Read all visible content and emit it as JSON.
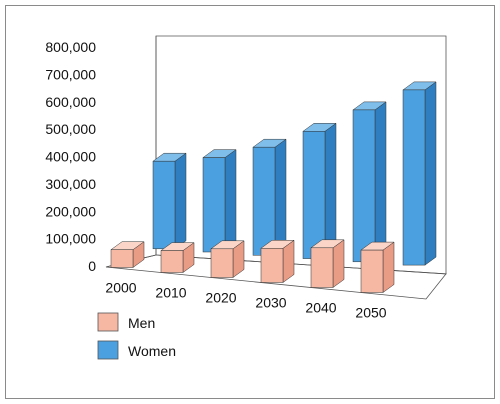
{
  "chart_data": {
    "type": "bar",
    "categories": [
      "2000",
      "2010",
      "2020",
      "2030",
      "2040",
      "2050"
    ],
    "series": [
      {
        "name": "Men",
        "values": [
          65000,
          80000,
          105000,
          125000,
          145000,
          155000
        ]
      },
      {
        "name": "Women",
        "values": [
          320000,
          345000,
          395000,
          465000,
          555000,
          640000
        ]
      }
    ],
    "y_ticks": [
      "0",
      "100,000",
      "200,000",
      "300,000",
      "400,000",
      "500,000",
      "600,000",
      "700,000",
      "800,000"
    ],
    "ylim": [
      0,
      800000
    ],
    "grid": false,
    "legend_position": "bottom-left",
    "colors": {
      "Men": "#f7b8a3",
      "Men_side": "#e89c85",
      "Men_top": "#fbd5c7",
      "Women": "#4ba0df",
      "Women_side": "#2f7fc0",
      "Women_top": "#7fbdea",
      "axis_line": "#555555",
      "wall_fill": "#ffffff",
      "frame": "#8a8a8a"
    }
  }
}
